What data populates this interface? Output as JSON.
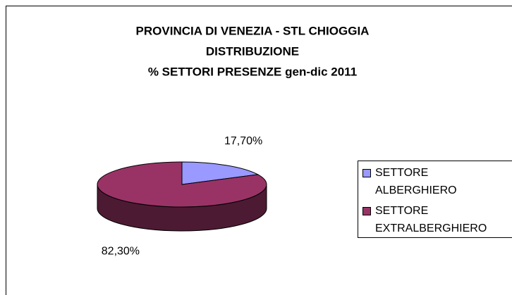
{
  "chart_data": {
    "type": "pie3d",
    "title": [
      "PROVINCIA DI VENEZIA - STL CHIOGGIA",
      "DISTRIBUZIONE",
      "% SETTORI PRESENZE gen-dic 2011"
    ],
    "categories": [
      "SETTORE ALBERGHIERO",
      "SETTORE EXTRALBERGHIERO"
    ],
    "values": [
      17.7,
      82.3
    ],
    "value_labels": [
      "17,70%",
      "82,30%"
    ],
    "colors": [
      "#9999ff",
      "#993366"
    ],
    "legend": "right"
  }
}
